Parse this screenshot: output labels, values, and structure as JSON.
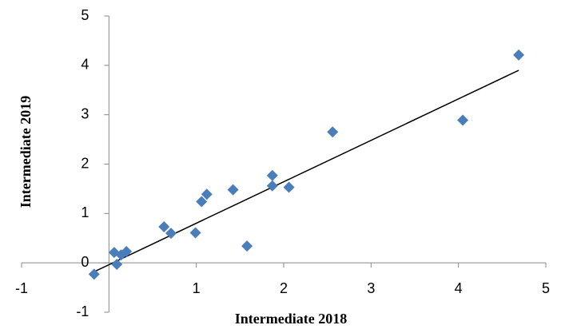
{
  "chart_data": {
    "type": "scatter",
    "x_label": "Intermediate 2018",
    "y_label": "Intermediate 2019",
    "series": [
      {
        "name": "Intermediate",
        "color": "#4a7ebb",
        "x": [
          -0.17,
          0.06,
          0.09,
          0.14,
          0.2,
          0.63,
          0.71,
          0.99,
          1.06,
          1.12,
          1.42,
          1.58,
          1.87,
          1.87,
          2.06,
          2.56,
          4.05,
          4.69
        ],
        "values": [
          -0.23,
          0.21,
          -0.03,
          0.16,
          0.23,
          0.73,
          0.6,
          0.61,
          1.24,
          1.39,
          1.48,
          0.34,
          1.77,
          1.56,
          1.53,
          2.65,
          2.89,
          4.21
        ]
      }
    ],
    "trendline": {
      "color": "#000000",
      "x": [
        -0.17,
        4.69
      ],
      "values": [
        -0.18,
        3.9
      ]
    },
    "xlim": [
      -1,
      5
    ],
    "ylim": [
      -1,
      5
    ],
    "xticks": [
      -1,
      1,
      2,
      3,
      4,
      5
    ],
    "yticks": [
      -1,
      0,
      1,
      2,
      3,
      4,
      5
    ],
    "grid": false
  }
}
